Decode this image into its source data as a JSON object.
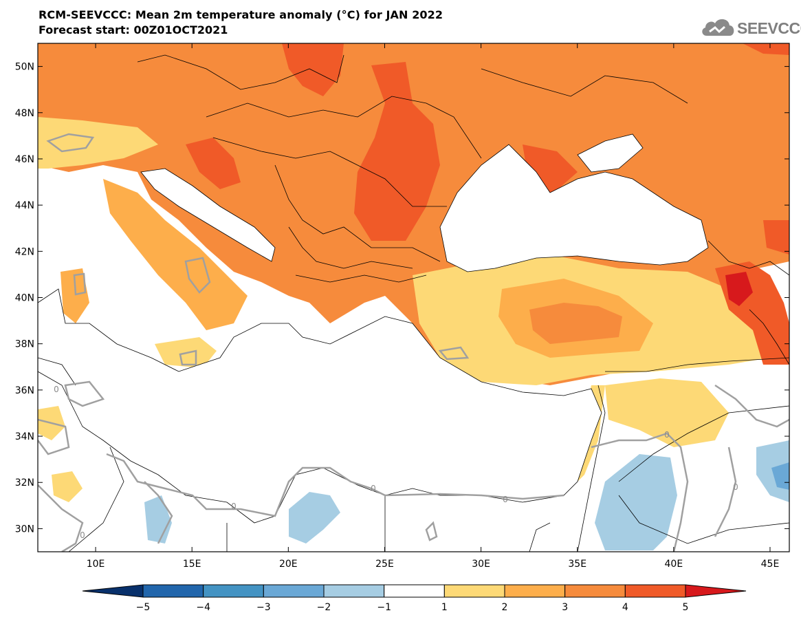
{
  "title": "RCM-SEEVCCC: Mean 2m temperature anomaly (°C) for JAN 2022",
  "subtitle": "Forecast start: 00Z01OCT2021",
  "logo": {
    "text": "SEEVCCC",
    "icon": "cloud-icon"
  },
  "map": {
    "lon_range": [
      7,
      46
    ],
    "lat_range": [
      29,
      51
    ],
    "lat_ticks": [
      {
        "value": 50,
        "label": "50N"
      },
      {
        "value": 48,
        "label": "48N"
      },
      {
        "value": 46,
        "label": "46N"
      },
      {
        "value": 44,
        "label": "44N"
      },
      {
        "value": 42,
        "label": "42N"
      },
      {
        "value": 40,
        "label": "40N"
      },
      {
        "value": 38,
        "label": "38N"
      },
      {
        "value": 36,
        "label": "36N"
      },
      {
        "value": 34,
        "label": "34N"
      },
      {
        "value": 32,
        "label": "32N"
      },
      {
        "value": 30,
        "label": "30N"
      }
    ],
    "lon_ticks": [
      {
        "value": 10,
        "label": "10E"
      },
      {
        "value": 15,
        "label": "15E"
      },
      {
        "value": 20,
        "label": "20E"
      },
      {
        "value": 25,
        "label": "25E"
      },
      {
        "value": 30,
        "label": "30E"
      },
      {
        "value": 35,
        "label": "35E"
      },
      {
        "value": 40,
        "label": "40E"
      },
      {
        "value": 45,
        "label": "45E"
      }
    ],
    "contour_label": "0"
  },
  "colorbar": {
    "labels": [
      "-5",
      "-4",
      "-3",
      "-2",
      "-1",
      "1",
      "2",
      "3",
      "4",
      "5"
    ],
    "colors": [
      "#08306b",
      "#2166ac",
      "#4393c3",
      "#6aa8d6",
      "#a6cde3",
      "#ffffff",
      "#fdd976",
      "#fdae4b",
      "#f68b3c",
      "#f05a28",
      "#d7191c"
    ]
  }
}
